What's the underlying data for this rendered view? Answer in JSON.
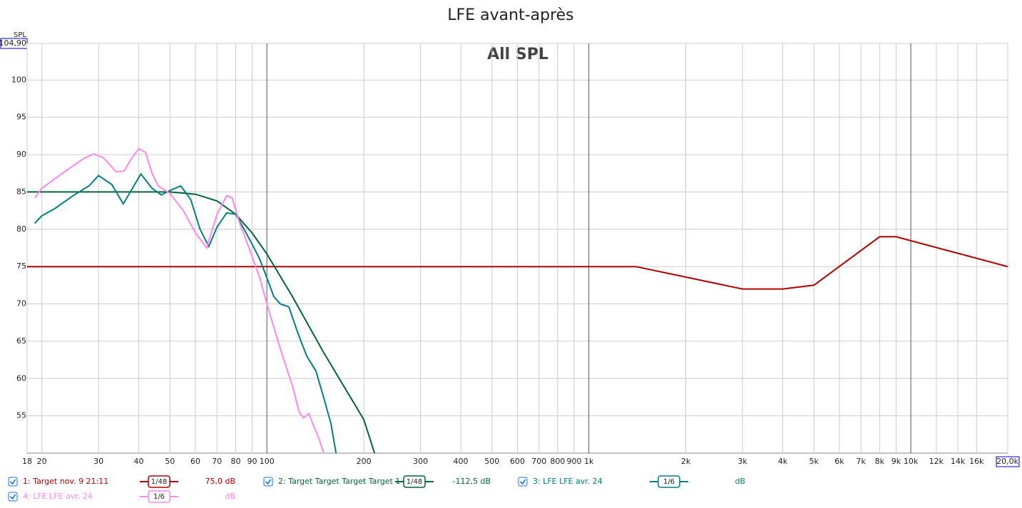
{
  "chart_data": {
    "type": "line",
    "title": "LFE avant-après",
    "annotation": "All SPL",
    "y_label": "SPL",
    "x_scale": "log",
    "grid": true,
    "xlim": [
      18,
      20000
    ],
    "ylim": [
      50,
      104.9
    ],
    "xticks": [
      18,
      20,
      30,
      40,
      50,
      60,
      70,
      80,
      90,
      100,
      200,
      300,
      400,
      500,
      600,
      700,
      800,
      900,
      {
        "value": 1000,
        "label": "1k"
      },
      {
        "value": 2000,
        "label": "2k"
      },
      {
        "value": 3000,
        "label": "3k"
      },
      {
        "value": 4000,
        "label": "4k"
      },
      {
        "value": 5000,
        "label": "5k"
      },
      {
        "value": 6000,
        "label": "6k"
      },
      {
        "value": 7000,
        "label": "7k"
      },
      {
        "value": 8000,
        "label": "8k"
      },
      {
        "value": 9000,
        "label": "9k"
      },
      {
        "value": 10000,
        "label": "10k"
      },
      {
        "value": 12000,
        "label": "12k"
      },
      {
        "value": 14000,
        "label": "14k"
      },
      {
        "value": 16000,
        "label": "16k"
      },
      {
        "value": 20000,
        "label": "20,0k"
      }
    ],
    "yticks": [
      55,
      60,
      65,
      70,
      75,
      80,
      85,
      90,
      95,
      100,
      {
        "value": 104.9,
        "label": "104,90"
      }
    ],
    "series": [
      {
        "name": "1: Target nov. 9 21:11",
        "color": "#b00000",
        "smoothing": "1/48",
        "level": "75,0 dB",
        "x": [
          18,
          1400,
          3000,
          4000,
          5000,
          8000,
          9000,
          20000
        ],
        "values": [
          75,
          75,
          72,
          72,
          72.5,
          79,
          79,
          75
        ]
      },
      {
        "name": "2: Target Target Target Target 1",
        "color": "#006633",
        "smoothing": "1/48",
        "level": "-112,5 dB",
        "x": [
          18,
          30,
          40,
          50,
          60,
          70,
          80,
          90,
          100,
          120,
          150,
          200,
          216
        ],
        "values": [
          85,
          85,
          85,
          85,
          84.7,
          83.8,
          82,
          79.5,
          76.7,
          71,
          63.5,
          54.5,
          50
        ]
      },
      {
        "name": "3: LFE LFE avr. 24",
        "color": "#008080",
        "smoothing": "1/6",
        "level": "dB",
        "x": [
          19,
          20,
          22,
          25,
          28,
          30,
          33,
          35.8,
          40.6,
          44,
          47,
          50,
          54,
          58,
          62,
          66,
          70,
          75,
          80,
          85,
          90,
          95,
          100,
          105,
          110,
          117,
          125,
          133,
          142,
          150,
          158,
          164
        ],
        "values": [
          80.8,
          81.8,
          82.8,
          84.5,
          85.8,
          87.2,
          86,
          83.4,
          87.4,
          85.5,
          84.6,
          85.2,
          85.8,
          84,
          80,
          77.7,
          80.3,
          82.2,
          82,
          80,
          78,
          76,
          73.5,
          71,
          70,
          69.6,
          66,
          63,
          61,
          57.5,
          54,
          50
        ]
      },
      {
        "name": "4: LFE LFE avr. 24",
        "color": "#ff88ee",
        "smoothing": "1/6",
        "level": "dB",
        "x": [
          19,
          20,
          22,
          25,
          27,
          29,
          31,
          34,
          36,
          38,
          40,
          42,
          44,
          46,
          50,
          55,
          60,
          65,
          70,
          75,
          78,
          82,
          88,
          95,
          100,
          110,
          120,
          126,
          130,
          135,
          140,
          145,
          150
        ],
        "values": [
          84.2,
          85.5,
          86.8,
          88.5,
          89.5,
          90.1,
          89.6,
          87.7,
          87.8,
          89.5,
          90.8,
          90.3,
          87.5,
          85.8,
          84.8,
          82.5,
          79.5,
          77.5,
          82,
          84.5,
          84.2,
          81,
          77.5,
          73.5,
          70,
          64,
          59,
          55.5,
          54.7,
          55.3,
          53.5,
          52,
          50
        ]
      }
    ]
  }
}
